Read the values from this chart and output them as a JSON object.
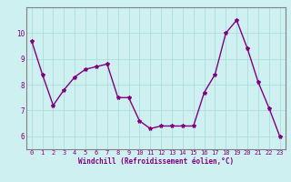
{
  "x": [
    0,
    1,
    2,
    3,
    4,
    5,
    6,
    7,
    8,
    9,
    10,
    11,
    12,
    13,
    14,
    15,
    16,
    17,
    18,
    19,
    20,
    21,
    22,
    23
  ],
  "y": [
    9.7,
    8.4,
    7.2,
    7.8,
    8.3,
    8.6,
    8.7,
    8.8,
    7.5,
    7.5,
    6.6,
    6.3,
    6.4,
    6.4,
    6.4,
    6.4,
    7.7,
    8.4,
    10.0,
    10.5,
    9.4,
    8.1,
    7.1,
    6.0
  ],
  "line_color": "#800080",
  "marker": "*",
  "marker_size": 3,
  "bg_color": "#cff0f0",
  "grid_color": "#aadddd",
  "xlabel": "Windchill (Refroidissement éolien,°C)",
  "xlabel_color": "#800080",
  "tick_color": "#800080",
  "spine_color": "#808080",
  "ylim": [
    5.5,
    11.0
  ],
  "xlim": [
    -0.5,
    23.5
  ],
  "yticks": [
    6,
    7,
    8,
    9,
    10
  ],
  "xticks": [
    0,
    1,
    2,
    3,
    4,
    5,
    6,
    7,
    8,
    9,
    10,
    11,
    12,
    13,
    14,
    15,
    16,
    17,
    18,
    19,
    20,
    21,
    22,
    23
  ],
  "tick_fontsize": 5,
  "xlabel_fontsize": 5.5,
  "linewidth": 1.0
}
